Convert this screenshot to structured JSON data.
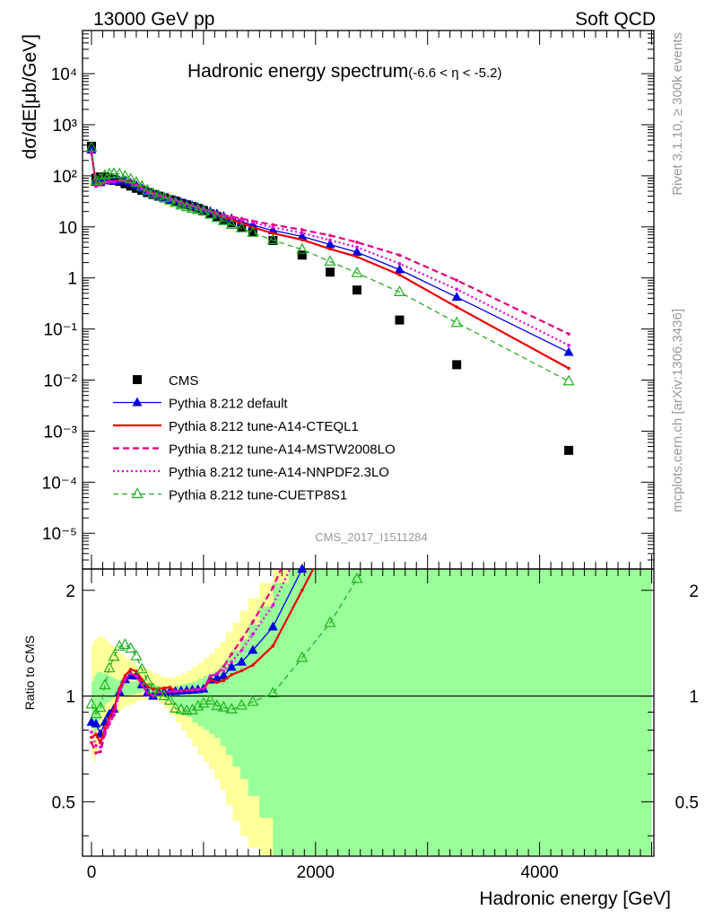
{
  "header": {
    "left": "13000 GeV pp",
    "right": "Soft QCD"
  },
  "side": {
    "right_top": "Rivet 3.1.10, ≥ 300k events",
    "right_bottom": "mcplots.cern.ch [arXiv:1306.3436]"
  },
  "chart_data": {
    "type": "line",
    "title": "Hadronic energy spectrum",
    "subtitle": "(-6.6 < η < -5.2)",
    "analysis": "CMS_2017_I1511284",
    "xlabel": "Hadronic energy [GeV]",
    "ylabel": "dσ/dE[μb/GeV]",
    "ratio_ylabel": "Ratio to CMS",
    "xlim": [
      -80,
      5020
    ],
    "ylim": [
      2e-06,
      70000
    ],
    "yscale": "log",
    "ratio_ylim": [
      0.35,
      2.3
    ],
    "ratio_yscale": "log",
    "x_ticks": [
      "0",
      "2000",
      "4000"
    ],
    "y_ticks": [
      "10⁻⁵",
      "10⁻⁴",
      "10⁻³",
      "10⁻²",
      "10⁻¹",
      "1",
      "10",
      "10²",
      "10³",
      "10⁴"
    ],
    "ratio_ticks": [
      "0.5",
      "1",
      "2"
    ],
    "legend_position": "bottom-left",
    "x": [
      0,
      40,
      80,
      120,
      160,
      200,
      250,
      300,
      350,
      400,
      450,
      500,
      550,
      600,
      650,
      700,
      750,
      800,
      850,
      900,
      950,
      1000,
      1060,
      1120,
      1180,
      1250,
      1340,
      1440,
      1620,
      1880,
      2130,
      2370,
      2750,
      3260,
      4260
    ],
    "series": [
      {
        "name": "CMS",
        "values": [
          380,
          90,
          95,
          95,
          90,
          85,
          78,
          70,
          63,
          57,
          52,
          47,
          43,
          40,
          37,
          34,
          32,
          29,
          27,
          25,
          23,
          21,
          18,
          16,
          14,
          12,
          10,
          8,
          5.4,
          2.8,
          1.3,
          0.58,
          0.15,
          0.02,
          0.00042
        ]
      },
      {
        "name": "Pythia 8.212 default",
        "values": [
          320,
          75,
          74,
          80,
          80,
          78,
          80,
          78,
          72,
          65,
          56,
          48,
          43,
          41,
          38,
          35,
          33,
          30,
          28,
          26,
          24,
          22,
          20,
          18,
          16,
          14.5,
          12.5,
          10.8,
          8.5,
          6.5,
          4.5,
          3.2,
          1.45,
          0.42,
          0.035
        ]
      },
      {
        "name": "Pythia 8.212 tune-A14-CTEQL1",
        "values": [
          290,
          70,
          70,
          77,
          78,
          78,
          82,
          80,
          75,
          67,
          58,
          50,
          45,
          42,
          39,
          36,
          33,
          30,
          28,
          26,
          24,
          22,
          20,
          17.5,
          15.5,
          13.8,
          11.8,
          9.8,
          7.5,
          5.6,
          3.7,
          2.6,
          1.15,
          0.27,
          0.017
        ]
      },
      {
        "name": "Pythia 8.212 tune-A14-MSTW2008LO",
        "values": [
          280,
          62,
          66,
          74,
          75,
          75,
          80,
          78,
          73,
          65,
          56,
          48,
          43,
          41,
          38,
          35,
          33,
          30,
          28,
          26,
          24,
          22,
          20.5,
          18.5,
          17,
          15.8,
          14.5,
          13,
          11,
          8.8,
          6.8,
          5,
          2.8,
          0.9,
          0.08
        ]
      },
      {
        "name": "Pythia 8.212 tune-A14-NNPDF2.3LO",
        "values": [
          300,
          65,
          68,
          75,
          76,
          76,
          80,
          78,
          73,
          65,
          56,
          48,
          43,
          41,
          38,
          35,
          33,
          30,
          28,
          26,
          24,
          22,
          20.5,
          18.5,
          16.5,
          15,
          13.5,
          12,
          9.8,
          7.6,
          5.5,
          4,
          1.9,
          0.6,
          0.048
        ]
      },
      {
        "name": "Pythia 8.212 tune-CUETP8S1",
        "values": [
          360,
          80,
          88,
          102,
          108,
          110,
          108,
          98,
          86,
          74,
          62,
          52,
          45,
          41,
          37,
          33,
          29.5,
          26.5,
          24.5,
          22.8,
          21.5,
          20,
          17.5,
          15,
          13,
          11,
          9.4,
          7.7,
          5.5,
          3.6,
          2.1,
          1.25,
          0.53,
          0.132,
          0.0095
        ]
      }
    ],
    "ratio_band_x": [
      0,
      20,
      40,
      60,
      80,
      100,
      120,
      140,
      160,
      180,
      200,
      230,
      260,
      300,
      350,
      400,
      450,
      500,
      550,
      600,
      650,
      700,
      750,
      800,
      850,
      900,
      950,
      1000,
      1050,
      1100,
      1150,
      1200,
      1260,
      1330,
      1400,
      1500,
      1620,
      1760,
      1900,
      2050,
      2250,
      2400,
      5000
    ],
    "ratio_band_green_lo": [
      0.82,
      0.78,
      0.8,
      0.85,
      0.9,
      0.93,
      0.95,
      0.96,
      0.97,
      0.98,
      0.99,
      1.0,
      1.0,
      1.0,
      1.01,
      1.02,
      1.03,
      1.03,
      1.02,
      1.0,
      0.98,
      0.96,
      0.93,
      0.9,
      0.87,
      0.84,
      0.82,
      0.8,
      0.78,
      0.76,
      0.72,
      0.68,
      0.63,
      0.58,
      0.52,
      0.45,
      0.35,
      0.35,
      0.35,
      0.35,
      0.35,
      0.35,
      0.35
    ],
    "ratio_band_green_hi": [
      1.1,
      1.14,
      1.16,
      1.17,
      1.17,
      1.16,
      1.16,
      1.15,
      1.14,
      1.13,
      1.12,
      1.11,
      1.1,
      1.1,
      1.1,
      1.1,
      1.09,
      1.08,
      1.07,
      1.06,
      1.06,
      1.06,
      1.07,
      1.08,
      1.09,
      1.1,
      1.12,
      1.14,
      1.16,
      1.18,
      1.22,
      1.28,
      1.35,
      1.45,
      1.6,
      1.8,
      2.1,
      2.3,
      2.3,
      2.3,
      2.3,
      2.3,
      2.3
    ],
    "ratio_band_yellow_lo": [
      0.68,
      0.65,
      0.7,
      0.75,
      0.78,
      0.8,
      0.82,
      0.84,
      0.85,
      0.86,
      0.88,
      0.9,
      0.92,
      0.94,
      0.95,
      0.97,
      0.98,
      0.98,
      0.97,
      0.95,
      0.92,
      0.88,
      0.84,
      0.8,
      0.76,
      0.72,
      0.68,
      0.65,
      0.62,
      0.58,
      0.54,
      0.49,
      0.44,
      0.4,
      0.37,
      0.35,
      0.35,
      0.35,
      0.35,
      0.35,
      0.35,
      0.35,
      0.35
    ],
    "ratio_band_yellow_hi": [
      1.4,
      1.44,
      1.46,
      1.48,
      1.48,
      1.47,
      1.45,
      1.43,
      1.41,
      1.39,
      1.37,
      1.34,
      1.31,
      1.28,
      1.25,
      1.22,
      1.2,
      1.18,
      1.16,
      1.14,
      1.13,
      1.13,
      1.14,
      1.16,
      1.18,
      1.21,
      1.24,
      1.28,
      1.32,
      1.37,
      1.43,
      1.52,
      1.62,
      1.75,
      1.9,
      2.1,
      2.3,
      2.3,
      2.3,
      2.3,
      2.3,
      2.3,
      2.3
    ],
    "colors": {
      "CMS": "#000000",
      "default": "#0000e0",
      "CTEQL1": "#ee0000",
      "MSTW2008LO": "#e6007e",
      "NNPDF2.3LO": "#e000e0",
      "CUETP8S1": "#20b020",
      "band_green": "#99ff99",
      "band_yellow": "#ffff99"
    }
  }
}
